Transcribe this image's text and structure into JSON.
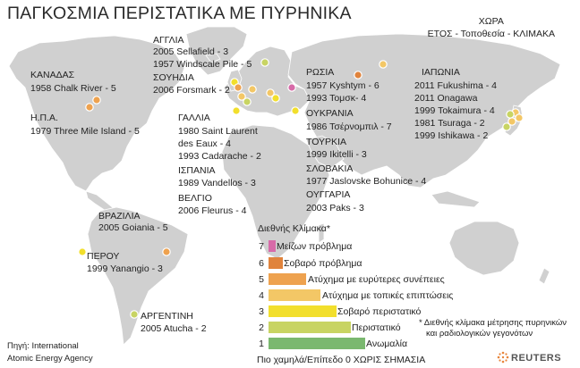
{
  "title": "ΠΑΓΚΟΣΜΙΑ ΠΕΡΙΣΤΑΤΙΚΑ ΜΕ ΠΥΡΗΝΙΚΑ",
  "key": {
    "line1": "ΧΩΡΑ",
    "line2": "ΕΤΟΣ - Τοποθεσία - ΚΛΙΜΑΚΑ"
  },
  "countries": {
    "canada": {
      "name": "ΚΑΝΑΔΑΣ",
      "event": "1958   Chalk River - 5"
    },
    "usa": {
      "name": "Η.Π.Α.",
      "event": "1979   Three Mile Island - 5"
    },
    "uk": {
      "name": "ΑΓΓΛΙΑ",
      "event1": "2005 Sellafield - 3",
      "event2": "1957  Windscale Pile - 5"
    },
    "sweden": {
      "name": "ΣΟΥΗΔΙΑ",
      "event": "2006 Forsmark - 2"
    },
    "france": {
      "name": "ΓΑΛΛΙΑ",
      "event1": "1980 Saint Laurent",
      "event1b": "des Eaux - 4",
      "event2": "1993 Cadarache - 2"
    },
    "spain": {
      "name": "ΙΣΠΑΝΙΑ",
      "event": "1989 Vandellos - 3"
    },
    "belgium": {
      "name": "ΒΕΛΓΙΟ",
      "event": "2006 Fleurus - 4"
    },
    "russia": {
      "name": "ΡΩΣΙΑ",
      "event1": "1957 Kyshtym - 6",
      "event2": "1993 Τομσκ- 4"
    },
    "ukraine": {
      "name": "ΟΥΚΡΑΝΙΑ",
      "event": "1986 Τσέρνομπιλ - 7"
    },
    "turkey": {
      "name": "ΤΟΥΡΚΙΑ",
      "event": "1999 Ikitelli - 3"
    },
    "slovakia": {
      "name": "ΣΛΟΒΑΚΙΑ",
      "event": "1977 Jaslovske Bohunice - 4"
    },
    "hungary": {
      "name": "ΟΥΓΓΑΡΙΑ",
      "event": "2003 Paks - 3"
    },
    "japan": {
      "name": "ΙΑΠΩΝΙΑ",
      "events": [
        "2011 Fukushima - 4",
        "2011 Onagawa",
        "1999 Tokaimura - 4",
        "1981 Tsuraga - 2",
        "1999 Ishikawa -  2"
      ]
    },
    "brazil": {
      "name": "ΒΡΑΖΙΛΙΑ",
      "event": "2005 Goiania - 5"
    },
    "peru": {
      "name": "ΠΕΡΟΥ",
      "event": "1999 Yanangio - 3"
    },
    "argentina": {
      "name": "ΑΡΓΕΝΤΙΝΗ",
      "event": "2005 Atucha - 2"
    }
  },
  "scale": {
    "heading": "Διεθνής Κλίμακα*",
    "levels": [
      {
        "level": 7,
        "label": "Μείζων πρόβλημα",
        "color": "#d76aa8"
      },
      {
        "level": 6,
        "label": "Σοβαρό πρόβλημα",
        "color": "#e0833c"
      },
      {
        "level": 5,
        "label": "Ατύχημα με ευρύτερες συνέπειες",
        "color": "#eea24f"
      },
      {
        "level": 4,
        "label": "Ατύχημα με τοπικές επιπτώσεις",
        "color": "#f3c766"
      },
      {
        "level": 3,
        "label": "Σοβαρό περιστατικό",
        "color": "#f2df2c"
      },
      {
        "level": 2,
        "label": "Περιστατικό",
        "color": "#c8d463"
      },
      {
        "level": 1,
        "label": "Ανωμαλία",
        "color": "#7ab86f"
      }
    ],
    "footer": "Πιο χαμηλά/Επίπεδο 0 ΧΩΡΙΣ ΣΗΜΑΣΙΑ",
    "note1": "* Διεθνής κλίμακα μέτρησης πυρηνικών",
    "note2": "και ραδιολογικών γεγονότων"
  },
  "source": {
    "line1": "Πηγή: International",
    "line2": "Atomic Energy Agency"
  },
  "brand": "REUTERS",
  "colors": {
    "land": "#cfcfcf",
    "ocean": "#ffffff"
  }
}
